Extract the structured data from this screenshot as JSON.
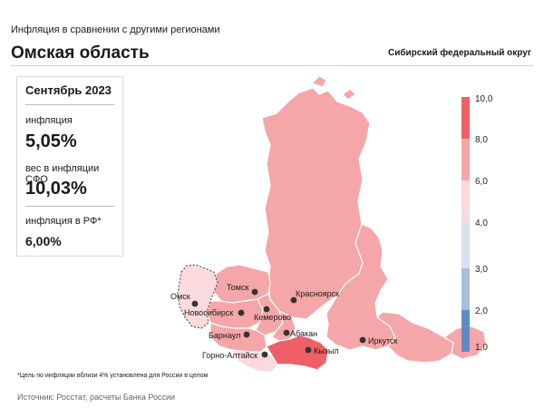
{
  "header": {
    "subtitle": "Инфляция  в сравнении  с другими регионами",
    "title": "Омская область",
    "district": "Сибирский федеральный округ"
  },
  "panel": {
    "month": "Сентябрь 2023",
    "inflation_label": "инфляция",
    "inflation_value": "5,05%",
    "weight_label": "вес в инфляции  СФО",
    "weight_value": "10,03%",
    "russia_label": "инфляция  в РФ*",
    "russia_value": "6,00%"
  },
  "legend": {
    "ticks": [
      "10,0",
      "8,0",
      "6,0",
      "4,0",
      "3,0",
      "2,0",
      "1,0"
    ],
    "colors": [
      "#ee5f66",
      "#f5a6a8",
      "#fadadc",
      "#d9e1f0",
      "#a7bfdd",
      "#5f8bc4"
    ]
  },
  "map": {
    "cities": [
      "Омск",
      "Томск",
      "Новосибирск",
      "Кемерово",
      "Красноярск",
      "Абакан",
      "Барнаул",
      "Горно-Алтайск",
      "Кызыл",
      "Иркутск"
    ],
    "colors": {
      "omsk": "#fadadc",
      "main": "#f5a6a8",
      "tyva": "#ee5f66",
      "altai_rep": "#fadadc",
      "border": "#ffffff"
    }
  },
  "footnote": "*Цель по инфляции вблизи 4% установлена для России в целом",
  "source": "Источник: Росстат, расчеты Банка России"
}
